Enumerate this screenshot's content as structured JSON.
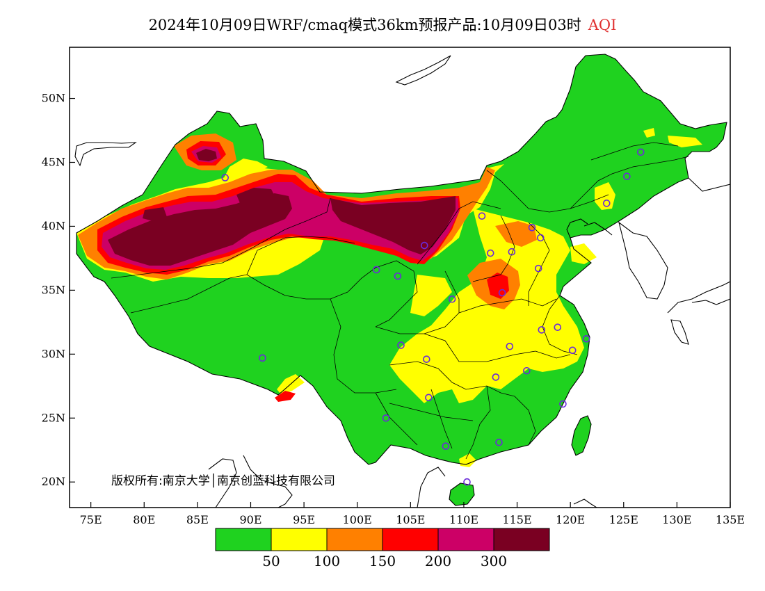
{
  "title": {
    "main": "2024年10月09日WRF/cmaq模式36km预报产品:10月09日03时",
    "variable": "AQI"
  },
  "axes": {
    "latitude_labels": [
      "50N",
      "45N",
      "40N",
      "35N",
      "30N",
      "25N",
      "20N"
    ],
    "latitude_values": [
      50,
      45,
      40,
      35,
      30,
      25,
      20
    ],
    "longitude_labels": [
      "75E",
      "80E",
      "85E",
      "90E",
      "95E",
      "100E",
      "105E",
      "110E",
      "115E",
      "120E",
      "125E",
      "130E",
      "135E"
    ],
    "longitude_values": [
      75,
      80,
      85,
      90,
      95,
      100,
      105,
      110,
      115,
      120,
      125,
      130,
      135
    ]
  },
  "legend": {
    "colors": [
      "#1fd21f",
      "#ffff00",
      "#ff8000",
      "#ff0000",
      "#cc0066",
      "#7a0022"
    ],
    "labels": [
      "50",
      "100",
      "150",
      "200",
      "300"
    ]
  },
  "copyright": "版权所有:南京大学│南京创蓝科技有限公司",
  "stations": [
    {
      "lon": 87.6,
      "lat": 43.8
    },
    {
      "lon": 91.1,
      "lat": 29.7
    },
    {
      "lon": 101.8,
      "lat": 36.6
    },
    {
      "lon": 103.8,
      "lat": 36.1
    },
    {
      "lon": 106.3,
      "lat": 38.5
    },
    {
      "lon": 111.7,
      "lat": 40.8
    },
    {
      "lon": 112.5,
      "lat": 37.9
    },
    {
      "lon": 114.5,
      "lat": 38.0
    },
    {
      "lon": 116.4,
      "lat": 39.9
    },
    {
      "lon": 117.2,
      "lat": 39.1
    },
    {
      "lon": 117.0,
      "lat": 36.7
    },
    {
      "lon": 113.6,
      "lat": 34.8
    },
    {
      "lon": 108.9,
      "lat": 34.3
    },
    {
      "lon": 104.1,
      "lat": 30.7
    },
    {
      "lon": 106.5,
      "lat": 29.6
    },
    {
      "lon": 114.3,
      "lat": 30.6
    },
    {
      "lon": 117.3,
      "lat": 31.9
    },
    {
      "lon": 118.8,
      "lat": 32.1
    },
    {
      "lon": 121.5,
      "lat": 31.2
    },
    {
      "lon": 120.2,
      "lat": 30.3
    },
    {
      "lon": 115.9,
      "lat": 28.7
    },
    {
      "lon": 113.0,
      "lat": 28.2
    },
    {
      "lon": 106.7,
      "lat": 26.6
    },
    {
      "lon": 102.7,
      "lat": 25.0
    },
    {
      "lon": 108.3,
      "lat": 22.8
    },
    {
      "lon": 113.3,
      "lat": 23.1
    },
    {
      "lon": 119.3,
      "lat": 26.1
    },
    {
      "lon": 110.3,
      "lat": 20.0
    },
    {
      "lon": 123.4,
      "lat": 41.8
    },
    {
      "lon": 125.3,
      "lat": 43.9
    },
    {
      "lon": 126.6,
      "lat": 45.8
    }
  ]
}
